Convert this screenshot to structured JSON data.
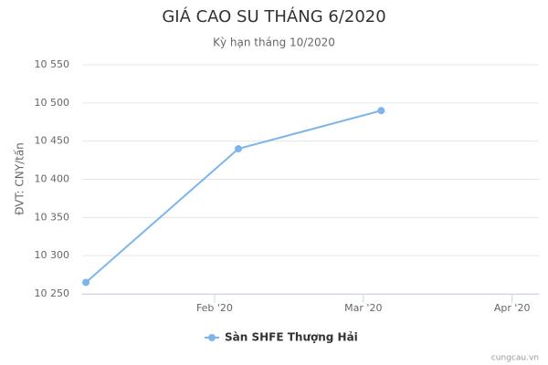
{
  "chart_data": {
    "type": "line",
    "title": "GIÁ CAO SU THÁNG 6/2020",
    "subtitle": "Kỳ hạn tháng 10/2020",
    "y_label": "ĐVT: CNY/tấn",
    "credit": "cungcau.vn",
    "x": [
      1.135,
      2.16,
      3.12
    ],
    "series": [
      {
        "name": "Sàn SHFE Thượng Hải",
        "color": "#7cb5ec",
        "values": [
          10265,
          10440,
          10490
        ]
      }
    ],
    "xlim": [
      1.11,
      4.18
    ],
    "xticks": [
      {
        "value": 2,
        "label": "Feb '20"
      },
      {
        "value": 3,
        "label": "Mar '20"
      },
      {
        "value": 4,
        "label": "Apr '20"
      }
    ],
    "ylim": [
      10250,
      10550
    ],
    "yticks": [
      {
        "value": 10250,
        "label": "10 250"
      },
      {
        "value": 10300,
        "label": "10 300"
      },
      {
        "value": 10350,
        "label": "10 350"
      },
      {
        "value": 10400,
        "label": "10 400"
      },
      {
        "value": 10450,
        "label": "10 450"
      },
      {
        "value": 10500,
        "label": "10 500"
      },
      {
        "value": 10550,
        "label": "10 550"
      }
    ],
    "grid": true
  }
}
